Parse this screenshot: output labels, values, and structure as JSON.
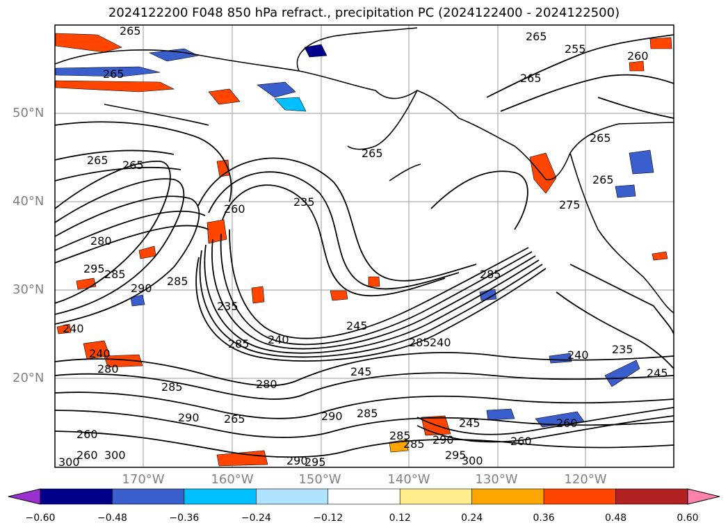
{
  "title": "2024122200 F048 850 hPa refract., precipitation PC (2024122400 - 2024122500)",
  "lat_labels": [
    "50°N",
    "40°N",
    "30°N",
    "20°N"
  ],
  "lon_labels": [
    "170°W",
    "160°W",
    "150°W",
    "140°W",
    "130°W",
    "120°W"
  ],
  "contour_labels": [
    "265",
    "265",
    "265",
    "255",
    "260",
    "265",
    "265",
    "265",
    "265",
    "265",
    "280",
    "295",
    "285",
    "290",
    "285",
    "260",
    "240",
    "235",
    "240",
    "245",
    "285",
    "290",
    "285",
    "300",
    "285",
    "290",
    "295",
    "285",
    "265",
    "240",
    "245",
    "285",
    "235",
    "240",
    "235",
    "245",
    "275",
    "285",
    "265",
    "245",
    "260",
    "260",
    "290",
    "280",
    "260",
    "240",
    "300",
    "280",
    "290",
    "295",
    "285",
    "300",
    "260"
  ],
  "colorbar": {
    "ticks": [
      "−0.60",
      "−0.48",
      "−0.36",
      "−0.24",
      "−0.12",
      "0.12",
      "0.24",
      "0.36",
      "0.48",
      "0.60"
    ],
    "colors": [
      "#9b30d0",
      "#00008b",
      "#3a5fcd",
      "#00bfff",
      "#b0e2ff",
      "#ffffff",
      "#ffec8b",
      "#ffa500",
      "#ff4500",
      "#b22222",
      "#ff82ab"
    ]
  }
}
